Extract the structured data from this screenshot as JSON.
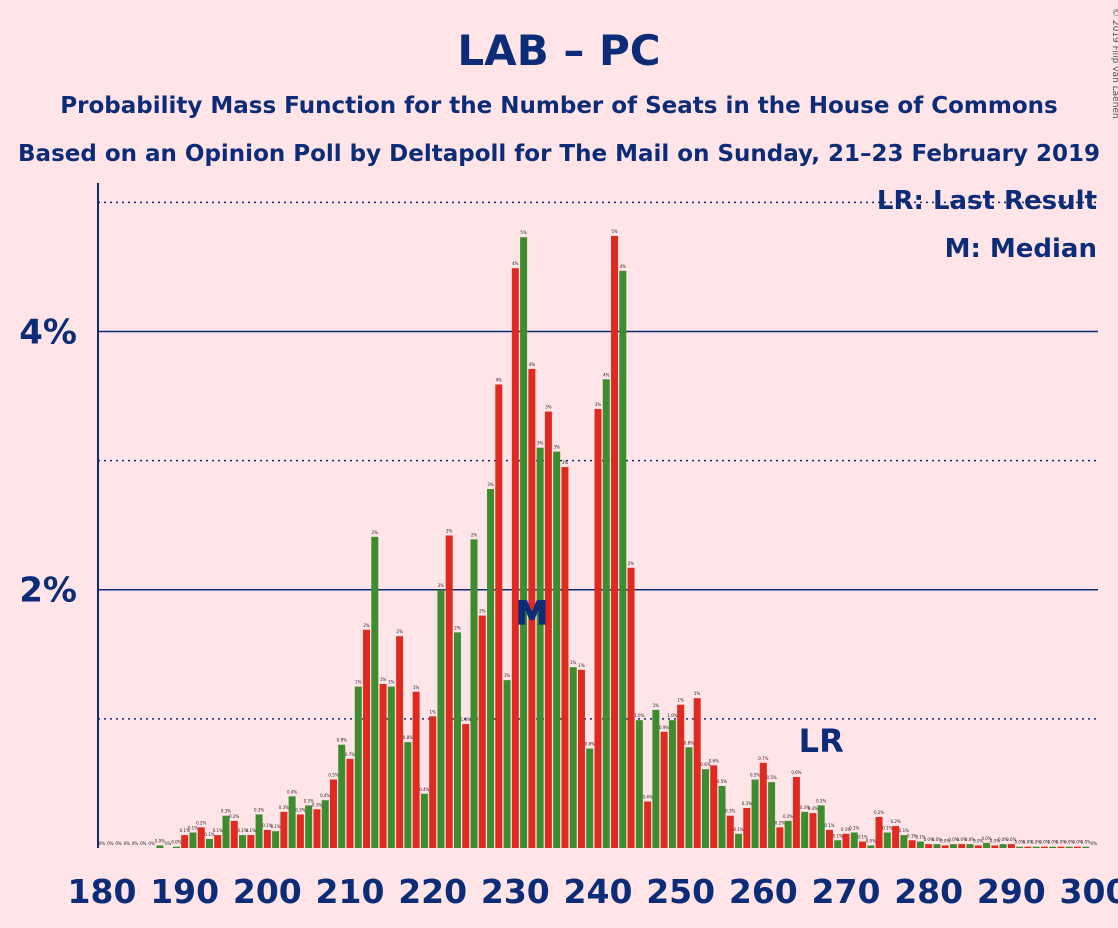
{
  "chart_data": {
    "type": "bar",
    "title": "LAB – PC",
    "subtitle1": "Probability Mass Function for the Number of Seats in the House of Commons",
    "subtitle2": "Based on an Opinion Poll by Deltapoll for The Mail on Sunday, 21–23 February 2019",
    "copyright": "© 2019 Filip van Laenen",
    "legend_lr": "LR: Last Result",
    "legend_m": "M: Median",
    "lr_label": "LR",
    "median_label": "M",
    "last_result": 267,
    "median": 232,
    "xlim": [
      180,
      300
    ],
    "ylim": [
      0,
      5.15
    ],
    "x_ticks": [
      180,
      190,
      200,
      210,
      220,
      230,
      240,
      250,
      260,
      270,
      280,
      290,
      300
    ],
    "y_ticks": [
      {
        "value": 2,
        "label": "2%"
      },
      {
        "value": 4,
        "label": "4%"
      }
    ],
    "minor_gridlines": [
      1,
      3,
      5
    ],
    "colors": {
      "lab": "#e02a20",
      "pc": "#3e8c2e",
      "axis": "#0c2c78",
      "background": "#ffe4e8"
    },
    "series": [
      {
        "name": "LAB",
        "x": [
          180,
          182,
          184,
          186,
          188,
          190,
          192,
          194,
          196,
          198,
          200,
          202,
          204,
          206,
          208,
          210,
          212,
          214,
          216,
          218,
          220,
          222,
          224,
          226,
          228,
          230,
          232,
          234,
          236,
          238,
          240,
          242,
          244,
          246,
          248,
          250,
          252,
          254,
          256,
          258,
          260,
          262,
          264,
          266,
          268,
          270,
          272,
          274,
          276,
          278,
          280,
          282,
          284,
          286,
          288,
          290,
          292,
          294,
          296,
          298,
          300
        ],
        "values": [
          0,
          0,
          0,
          0,
          0,
          0.1,
          0.16,
          0.1,
          0.21,
          0.1,
          0.14,
          0.28,
          0.26,
          0.3,
          0.53,
          0.69,
          1.69,
          1.27,
          1.64,
          1.21,
          1.02,
          2.42,
          0.96,
          1.8,
          3.59,
          4.49,
          3.71,
          3.38,
          2.95,
          1.38,
          3.4,
          4.74,
          2.17,
          0.36,
          0.9,
          1.11,
          1.16,
          0.64,
          0.25,
          0.31,
          0.66,
          0.16,
          0.55,
          0.27,
          0.14,
          0.11,
          0.05,
          0.24,
          0.17,
          0.06,
          0.03,
          0.02,
          0.03,
          0.02,
          0.02,
          0.03,
          0.01,
          0.01,
          0.01,
          0.01,
          0
        ]
      },
      {
        "name": "PC",
        "x": [
          181,
          183,
          185,
          187,
          189,
          191,
          193,
          195,
          197,
          199,
          201,
          203,
          205,
          207,
          209,
          211,
          213,
          215,
          217,
          219,
          221,
          223,
          225,
          227,
          229,
          231,
          233,
          235,
          237,
          239,
          241,
          243,
          245,
          247,
          249,
          251,
          253,
          255,
          257,
          259,
          261,
          263,
          265,
          267,
          269,
          271,
          273,
          275,
          277,
          279,
          281,
          283,
          285,
          287,
          289,
          291,
          293,
          295,
          297,
          299
        ],
        "values": [
          0,
          0,
          0,
          0.02,
          0.01,
          0.12,
          0.07,
          0.25,
          0.1,
          0.26,
          0.13,
          0.4,
          0.33,
          0.37,
          0.8,
          1.25,
          2.41,
          1.25,
          0.82,
          0.42,
          2.0,
          1.67,
          2.39,
          2.78,
          1.3,
          4.73,
          3.1,
          3.07,
          1.4,
          0.77,
          3.63,
          4.47,
          0.99,
          1.07,
          0.99,
          0.78,
          0.61,
          0.48,
          0.11,
          0.53,
          0.51,
          0.21,
          0.28,
          0.33,
          0.06,
          0.12,
          0.02,
          0.12,
          0.1,
          0.05,
          0.03,
          0.03,
          0.03,
          0.04,
          0.03,
          0.01,
          0.01,
          0.01,
          0.01,
          0.01
        ]
      }
    ]
  }
}
